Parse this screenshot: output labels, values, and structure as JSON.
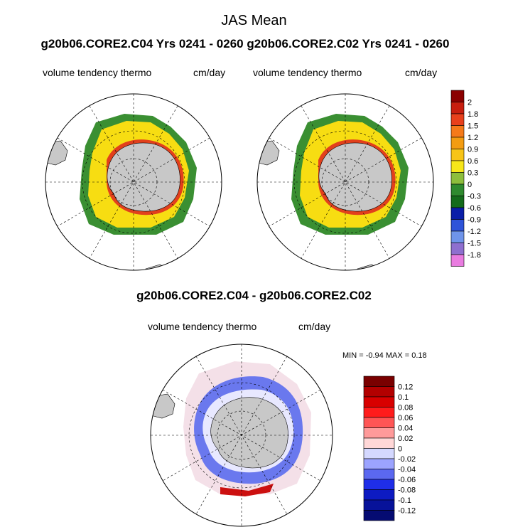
{
  "page": {
    "title": "JAS Mean",
    "subtitle": "g20b06.CORE2.C04  Yrs 0241 - 0260 g20b06.CORE2.C02  Yrs 0241 - 0260",
    "diff_title": "g20b06.CORE2.C04 - g20b06.CORE2.C02"
  },
  "chart_data": [
    {
      "type": "heatmap",
      "projection": "south-polar stereographic",
      "title": "",
      "left_label": "volume tendency thermo",
      "right_label": "cm/day",
      "variable": "volume tendency thermo"
    },
    {
      "type": "heatmap",
      "projection": "south-polar stereographic",
      "title": "",
      "left_label": "volume tendency thermo",
      "right_label": "cm/day",
      "variable": "volume tendency thermo"
    },
    {
      "type": "heatmap",
      "projection": "south-polar stereographic",
      "title": "",
      "left_label": "volume tendency thermo",
      "right_label": "cm/day",
      "stats": "MIN =  -0.94 MAX =   0.18",
      "min": -0.94,
      "max": 0.18
    }
  ],
  "colorbar_top": {
    "labels": [
      "2",
      "1.8",
      "1.5",
      "1.2",
      "0.9",
      "0.6",
      "0.3",
      "0",
      "-0.3",
      "-0.6",
      "-0.9",
      "-1.2",
      "-1.5",
      "-1.8"
    ],
    "colors": [
      "#8b0000",
      "#c81e0f",
      "#e8401c",
      "#f57a1a",
      "#f39c12",
      "#f7c418",
      "#f7e61a",
      "#8dbe3c",
      "#2f8a2f",
      "#146b1b",
      "#0a1ea8",
      "#2f54d9",
      "#6f94ea",
      "#8e6fcf",
      "#e97ce0"
    ]
  },
  "colorbar_bottom": {
    "labels": [
      "0.12",
      "0.1",
      "0.08",
      "0.06",
      "0.04",
      "0.02",
      "0",
      "-0.02",
      "-0.04",
      "-0.06",
      "-0.08",
      "-0.1",
      "-0.12"
    ],
    "colors": [
      "#7a0000",
      "#b30000",
      "#d80000",
      "#ff1c1c",
      "#ff5555",
      "#ff9a9a",
      "#ffd7d7",
      "#d4d8ff",
      "#9ca4ff",
      "#5b68f0",
      "#1f2ee8",
      "#0d1bc2",
      "#07129a",
      "#050b72"
    ]
  }
}
